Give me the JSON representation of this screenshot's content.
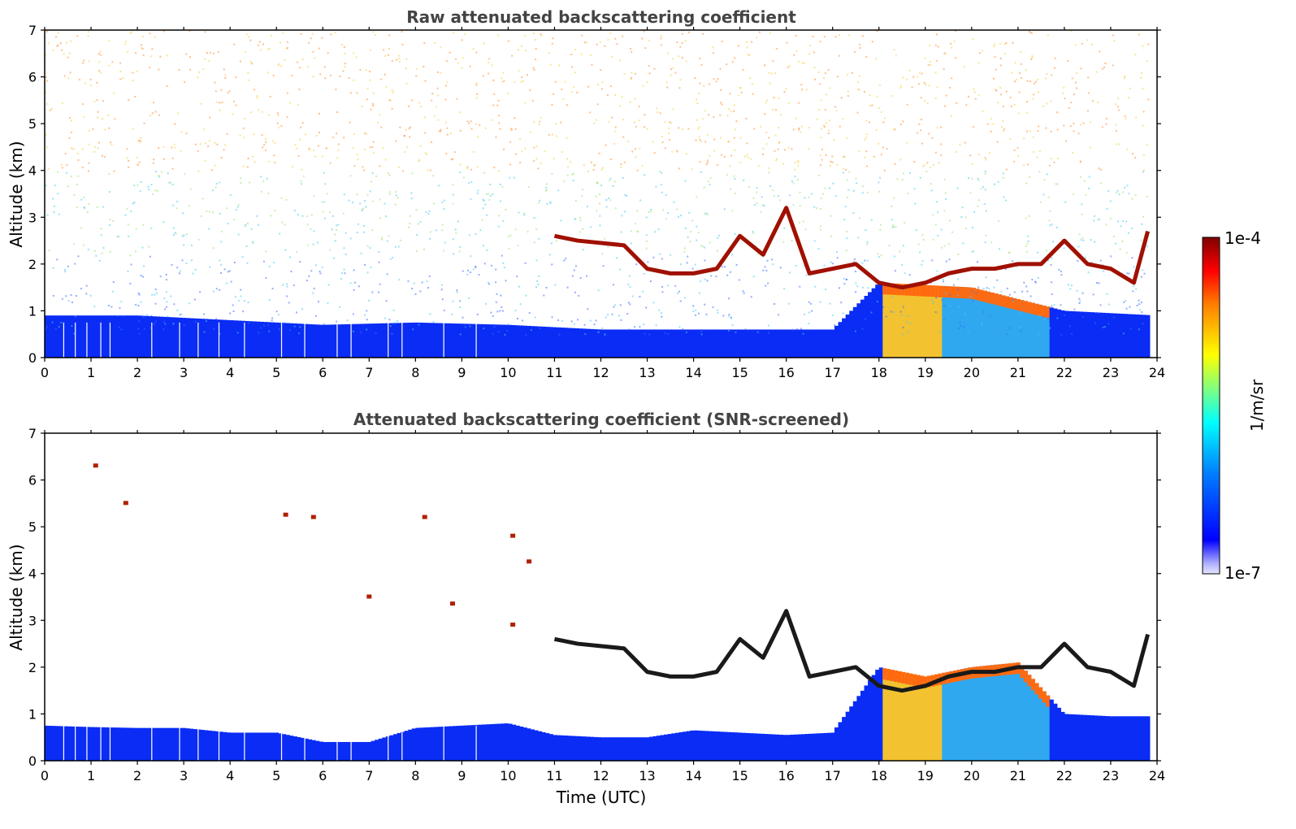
{
  "figure": {
    "colorbar": {
      "max_label": "1e-4",
      "min_label": "1e-7",
      "unit_label": "1/m/sr",
      "log_scale": true,
      "range": [
        1e-07,
        0.0001
      ],
      "colormap": "jet",
      "colors": [
        "#e6e6ff",
        "#b0b0ff",
        "#0000ff",
        "#007fff",
        "#00ffff",
        "#7fff7f",
        "#ffff00",
        "#ff7f00",
        "#ff0000",
        "#7f0000"
      ]
    }
  },
  "chart_data": [
    {
      "type": "heatmap",
      "title": "Raw attenuated backscattering coefficient",
      "xlabel": "",
      "ylabel": "Altitude (km)",
      "xlim": [
        0,
        24
      ],
      "ylim": [
        0,
        7
      ],
      "x_ticks": [
        "0",
        "1",
        "2",
        "3",
        "4",
        "5",
        "6",
        "7",
        "8",
        "9",
        "10",
        "11",
        "12",
        "13",
        "14",
        "15",
        "16",
        "17",
        "18",
        "19",
        "20",
        "21",
        "22",
        "23",
        "24"
      ],
      "y_ticks": [
        "0",
        "1",
        "2",
        "3",
        "4",
        "5",
        "6",
        "7"
      ],
      "grid": false,
      "cloud_layer": {
        "time": [
          11.0,
          11.5,
          12.5,
          13.0,
          13.5,
          14.0,
          14.5,
          15.0,
          15.5,
          16.0,
          16.5,
          17.0,
          17.5,
          18.0,
          18.5,
          19.0,
          19.5,
          20.0,
          20.5,
          21.0,
          21.5,
          22.0,
          22.5,
          23.0,
          23.5,
          23.8
        ],
        "altitude_km": [
          2.6,
          2.5,
          2.4,
          1.9,
          1.8,
          1.8,
          1.9,
          2.6,
          2.2,
          3.2,
          1.8,
          1.9,
          2.0,
          1.6,
          1.5,
          1.6,
          1.8,
          1.9,
          1.9,
          2.0,
          2.0,
          2.5,
          2.0,
          1.9,
          1.6,
          2.7
        ]
      },
      "boundary_layer": {
        "time": [
          0,
          2,
          4,
          6,
          8,
          10,
          12,
          14,
          16,
          17,
          18,
          20,
          22,
          24
        ],
        "top_km": [
          0.9,
          0.9,
          0.8,
          0.7,
          0.75,
          0.7,
          0.6,
          0.6,
          0.6,
          0.6,
          1.6,
          1.5,
          1.0,
          0.9
        ]
      }
    },
    {
      "type": "heatmap",
      "title": "Attenuated backscattering coefficient (SNR-screened)",
      "xlabel": "Time (UTC)",
      "ylabel": "Altitude (km)",
      "xlim": [
        0,
        24
      ],
      "ylim": [
        0,
        7
      ],
      "x_ticks": [
        "0",
        "1",
        "2",
        "3",
        "4",
        "5",
        "6",
        "7",
        "8",
        "9",
        "10",
        "11",
        "12",
        "13",
        "14",
        "15",
        "16",
        "17",
        "18",
        "19",
        "20",
        "21",
        "22",
        "23",
        "24"
      ],
      "y_ticks": [
        "0",
        "1",
        "2",
        "3",
        "4",
        "5",
        "6",
        "7"
      ],
      "grid": false,
      "boundary_layer": {
        "time": [
          0,
          1,
          2,
          3,
          4,
          5,
          6,
          7,
          8,
          9,
          10,
          11,
          12,
          13,
          14,
          15,
          16,
          17,
          18,
          19,
          20,
          21,
          22,
          23,
          23.8
        ],
        "top_km": [
          0.75,
          0.72,
          0.7,
          0.7,
          0.6,
          0.6,
          0.4,
          0.4,
          0.7,
          0.75,
          0.8,
          0.55,
          0.5,
          0.5,
          0.65,
          0.6,
          0.55,
          0.6,
          2.0,
          1.8,
          2.0,
          2.1,
          1.0,
          0.95,
          0.95
        ]
      }
    }
  ]
}
